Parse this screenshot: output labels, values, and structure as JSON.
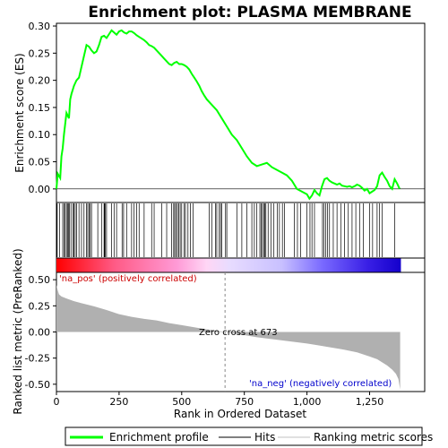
{
  "chart_data": {
    "type": "line",
    "title": "Enrichment plot: PLASMA MEMBRANE",
    "panels": {
      "top": {
        "ylabel": "Enrichment score (ES)",
        "ylim": [
          -0.025,
          0.305
        ],
        "yticks": [
          0.0,
          0.05,
          0.1,
          0.15,
          0.2,
          0.25,
          0.3
        ],
        "ytick_labels": [
          "0.00",
          "0.05",
          "0.10",
          "0.15",
          "0.20",
          "0.25",
          "0.30"
        ],
        "line_color": "#00ff00",
        "series": [
          {
            "name": "Enrichment profile",
            "x": [
              0,
              5,
              10,
              15,
              20,
              25,
              30,
              35,
              40,
              45,
              50,
              55,
              60,
              70,
              80,
              90,
              100,
              110,
              120,
              130,
              140,
              150,
              160,
              170,
              180,
              190,
              200,
              210,
              220,
              230,
              240,
              250,
              260,
              270,
              280,
              290,
              300,
              310,
              320,
              330,
              340,
              350,
              360,
              370,
              380,
              390,
              400,
              410,
              420,
              430,
              440,
              450,
              460,
              470,
              480,
              490,
              500,
              510,
              520,
              530,
              540,
              550,
              560,
              570,
              580,
              590,
              600,
              620,
              640,
              660,
              680,
              700,
              720,
              740,
              760,
              780,
              800,
              820,
              840,
              860,
              880,
              900,
              920,
              940,
              960,
              980,
              1000,
              1010,
              1020,
              1030,
              1040,
              1050,
              1060,
              1070,
              1080,
              1090,
              1100,
              1110,
              1120,
              1130,
              1140,
              1150,
              1160,
              1170,
              1180,
              1190,
              1200,
              1210,
              1220,
              1230,
              1240,
              1250,
              1260,
              1270,
              1280,
              1290,
              1300,
              1310,
              1320,
              1330,
              1340,
              1350,
              1360,
              1370
            ],
            "y": [
              0.0,
              0.028,
              0.024,
              0.02,
              0.06,
              0.075,
              0.1,
              0.12,
              0.14,
              0.135,
              0.13,
              0.165,
              0.175,
              0.19,
              0.2,
              0.205,
              0.225,
              0.245,
              0.265,
              0.262,
              0.255,
              0.25,
              0.253,
              0.265,
              0.28,
              0.282,
              0.278,
              0.285,
              0.292,
              0.288,
              0.284,
              0.29,
              0.292,
              0.288,
              0.286,
              0.29,
              0.29,
              0.287,
              0.283,
              0.28,
              0.277,
              0.274,
              0.27,
              0.265,
              0.263,
              0.26,
              0.255,
              0.25,
              0.245,
              0.24,
              0.235,
              0.23,
              0.228,
              0.232,
              0.234,
              0.23,
              0.23,
              0.228,
              0.225,
              0.22,
              0.212,
              0.205,
              0.198,
              0.19,
              0.18,
              0.172,
              0.165,
              0.155,
              0.145,
              0.13,
              0.115,
              0.1,
              0.09,
              0.075,
              0.06,
              0.048,
              0.042,
              0.045,
              0.048,
              0.04,
              0.035,
              0.03,
              0.025,
              0.015,
              0.0,
              -0.005,
              -0.01,
              -0.018,
              -0.012,
              -0.002,
              -0.008,
              -0.012,
              0.005,
              0.018,
              0.02,
              0.015,
              0.012,
              0.01,
              0.008,
              0.01,
              0.006,
              0.005,
              0.004,
              0.005,
              0.003,
              0.005,
              0.008,
              0.006,
              0.002,
              -0.003,
              0.0,
              -0.008,
              -0.005,
              -0.002,
              0.005,
              0.025,
              0.03,
              0.022,
              0.015,
              0.005,
              0.0,
              0.018,
              0.01,
              0.0
            ]
          }
        ]
      },
      "hits": {
        "positions": [
          3,
          12,
          25,
          30,
          35,
          40,
          45,
          48,
          52,
          58,
          66,
          70,
          75,
          80,
          90,
          100,
          110,
          120,
          125,
          130,
          135,
          140,
          165,
          180,
          190,
          192,
          195,
          200,
          220,
          230,
          240,
          262,
          268,
          280,
          300,
          310,
          320,
          330,
          350,
          380,
          390,
          420,
          440,
          460,
          468,
          472,
          478,
          483,
          488,
          494,
          500,
          510,
          515,
          525,
          535,
          545,
          610,
          620,
          635,
          640,
          650,
          655,
          660,
          675,
          680,
          720,
          740,
          760,
          780,
          790,
          800,
          812,
          818,
          822,
          828,
          832,
          836,
          845,
          856,
          868,
          882,
          890,
          902,
          910,
          950,
          962,
          975,
          1000,
          1012,
          1020,
          1030,
          1062,
          1068,
          1075,
          1082,
          1090,
          1105,
          1120,
          1135,
          1150,
          1165,
          1180,
          1195,
          1210,
          1225,
          1250,
          1262,
          1280,
          1290,
          1300,
          1350
        ]
      },
      "bar": {
        "gradient_stops": [
          {
            "rank": 0,
            "color": "#ff0000"
          },
          {
            "rank": 230,
            "color": "#ff5a85"
          },
          {
            "rank": 480,
            "color": "#ff9ad6"
          },
          {
            "rank": 600,
            "color": "#ffd6f5"
          },
          {
            "rank": 690,
            "color": "#e8dcff"
          },
          {
            "rank": 900,
            "color": "#c8c0ff"
          },
          {
            "rank": 1060,
            "color": "#7a6aff"
          },
          {
            "rank": 1240,
            "color": "#3a20e6"
          },
          {
            "rank": 1375,
            "color": "#1400cc"
          }
        ]
      },
      "bottom": {
        "ylabel": "Ranked list metric (PreRanked)",
        "xlabel": "Rank in Ordered Dataset",
        "ylim": [
          -0.57,
          0.57
        ],
        "yticks": [
          0.5,
          0.25,
          0.0,
          -0.25,
          -0.5
        ],
        "ytick_labels": [
          "0.50",
          "0.25",
          "0.00",
          "-0.25",
          "-0.50"
        ],
        "fill_color": "#b0b0b0",
        "metric_x": [
          0,
          5,
          10,
          20,
          40,
          70,
          100,
          150,
          200,
          250,
          300,
          350,
          400,
          450,
          500,
          550,
          600,
          650,
          673,
          700,
          750,
          800,
          850,
          900,
          950,
          1000,
          1050,
          1100,
          1150,
          1200,
          1250,
          1280,
          1300,
          1320,
          1340,
          1355,
          1365,
          1372
        ],
        "metric_y": [
          0.45,
          0.4,
          0.36,
          0.34,
          0.32,
          0.295,
          0.275,
          0.245,
          0.21,
          0.17,
          0.145,
          0.125,
          0.11,
          0.085,
          0.065,
          0.045,
          0.025,
          0.008,
          0.0,
          -0.012,
          -0.03,
          -0.05,
          -0.065,
          -0.08,
          -0.095,
          -0.11,
          -0.13,
          -0.15,
          -0.17,
          -0.195,
          -0.235,
          -0.26,
          -0.29,
          -0.32,
          -0.36,
          -0.4,
          -0.45,
          -0.55
        ],
        "zero_cross_rank": 673,
        "annotations": {
          "pos": "'na_pos' (positively correlated)",
          "neg": "'na_neg' (negatively correlated)",
          "zero": "Zero cross at 673"
        }
      }
    },
    "xlim": [
      0,
      1470
    ],
    "xticks": [
      0,
      250,
      500,
      750,
      1000,
      1250
    ],
    "xtick_labels": [
      "0",
      "250",
      "500",
      "750",
      "1,000",
      "1,250"
    ],
    "legend": {
      "placement": "bottom",
      "entries": [
        {
          "label": "Enrichment profile",
          "color": "#00ff00"
        },
        {
          "label": "Hits",
          "color": "#000000"
        },
        {
          "label": "Ranking metric scores",
          "color": "#c0c0c0"
        }
      ]
    }
  }
}
